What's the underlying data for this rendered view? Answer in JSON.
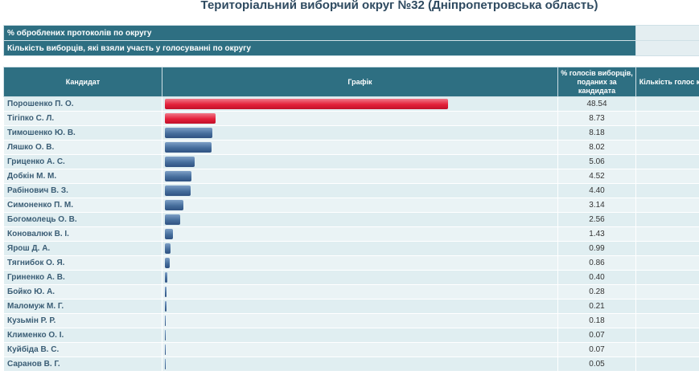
{
  "page": {
    "title": "Територіальний виборчий округ №32 (Дніпропетровська область)"
  },
  "summary": {
    "rows": [
      {
        "label": "% оброблених протоколів по округу",
        "value": ""
      },
      {
        "label": "Кількість виборців, які взяли участь у голосуванні по округу",
        "value": ""
      }
    ]
  },
  "table": {
    "headers": {
      "candidate": "Кандидат",
      "chart": "Графік",
      "percent": "% голосів виборців, поданих за кандидата",
      "count": "Кількість голос к"
    }
  },
  "colors": {
    "header": "#2e6f82",
    "leader_bar": "#e4203a",
    "bar": "#466e9c"
  },
  "chart_data": {
    "type": "bar",
    "categories": [
      "Порошенко П. О.",
      "Тігіпко С. Л.",
      "Тимошенко Ю. В.",
      "Ляшко О. В.",
      "Гриценко А. С.",
      "Добкін М. М.",
      "Рабінович В. З.",
      "Симоненко П. М.",
      "Богомолець О. В.",
      "Коновалюк В. І.",
      "Ярош Д. А.",
      "Тягнибок О. Я.",
      "Гриненко А. В.",
      "Бойко Ю. А.",
      "Маломуж М. Г.",
      "Кузьмін Р. Р.",
      "Клименко О. І.",
      "Куйбіда В. С.",
      "Саранов В. Г."
    ],
    "values": [
      48.54,
      8.73,
      8.18,
      8.02,
      5.06,
      4.52,
      4.4,
      3.14,
      2.56,
      1.43,
      0.99,
      0.86,
      0.4,
      0.28,
      0.21,
      0.18,
      0.07,
      0.07,
      0.05
    ],
    "labels": [
      "48.54",
      "8.73",
      "8.18",
      "8.02",
      "5.06",
      "4.52",
      "4.40",
      "3.14",
      "2.56",
      "1.43",
      "0.99",
      "0.86",
      "0.40",
      "0.28",
      "0.21",
      "0.18",
      "0.07",
      "0.07",
      "0.05"
    ],
    "highlight": [
      0,
      1
    ],
    "xlim": [
      0,
      48.54
    ]
  }
}
